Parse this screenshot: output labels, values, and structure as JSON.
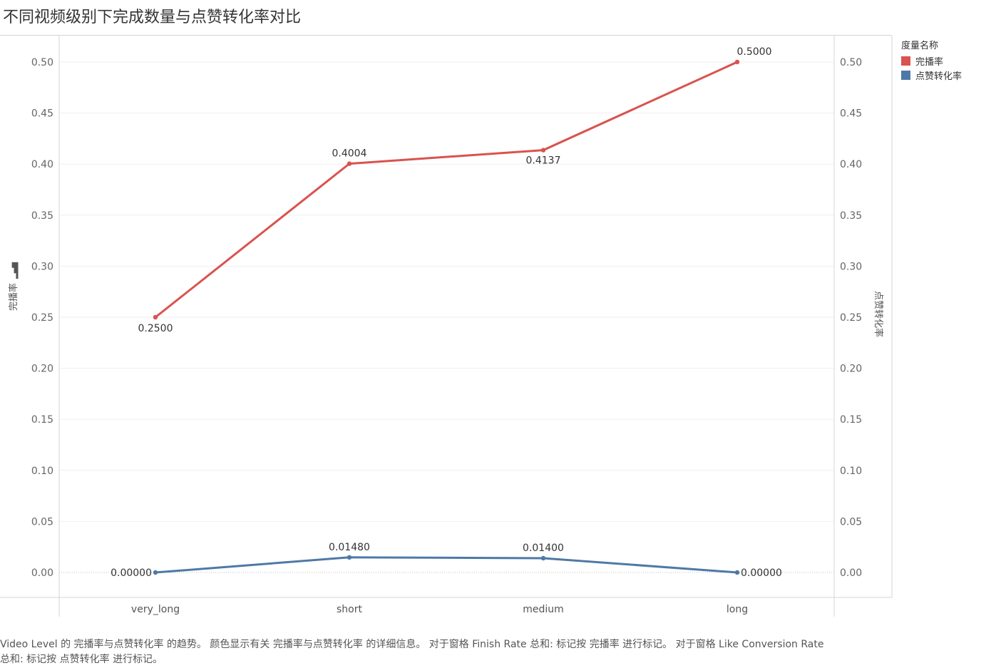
{
  "title": "不同视频级别下完成数量与点赞转化率对比",
  "axis": {
    "left_title": "完播率",
    "right_title": "点赞转化率",
    "ticks": [
      "0.00",
      "0.05",
      "0.10",
      "0.15",
      "0.20",
      "0.25",
      "0.30",
      "0.35",
      "0.40",
      "0.45",
      "0.50"
    ]
  },
  "legend": {
    "title": "度量名称",
    "items": [
      {
        "label": "完播率",
        "color": "#d9534f"
      },
      {
        "label": "点赞转化率",
        "color": "#4e79a7"
      }
    ]
  },
  "caption": "Video Level 的 完播率与点赞转化率 的趋势。 颜色显示有关 完播率与点赞转化率 的详细信息。 对于窗格 Finish Rate 总和: 标记按 完播率 进行标记。 对于窗格 Like Conversion Rate 总和: 标记按 点赞转化率 进行标记。",
  "chart_data": {
    "type": "line",
    "title": "不同视频级别下完成数量与点赞转化率对比",
    "xlabel": "",
    "ylabel": "完播率",
    "y2label": "点赞转化率",
    "categories": [
      "very_long",
      "short",
      "medium",
      "long"
    ],
    "ylim": [
      0,
      0.52
    ],
    "y2lim": [
      0,
      0.52
    ],
    "grid": true,
    "legend_position": "top-right",
    "series": [
      {
        "name": "完播率",
        "axis": "left",
        "color": "#d9534f",
        "values": [
          0.25,
          0.4004,
          0.4137,
          0.5
        ],
        "labels": [
          "0.2500",
          "0.4004",
          "0.4137",
          "0.5000"
        ]
      },
      {
        "name": "点赞转化率",
        "axis": "right",
        "color": "#4e79a7",
        "values": [
          0.0,
          0.0148,
          0.014,
          0.0
        ],
        "labels": [
          "0.00000",
          "0.01480",
          "0.01400",
          "0.00000"
        ]
      }
    ]
  }
}
